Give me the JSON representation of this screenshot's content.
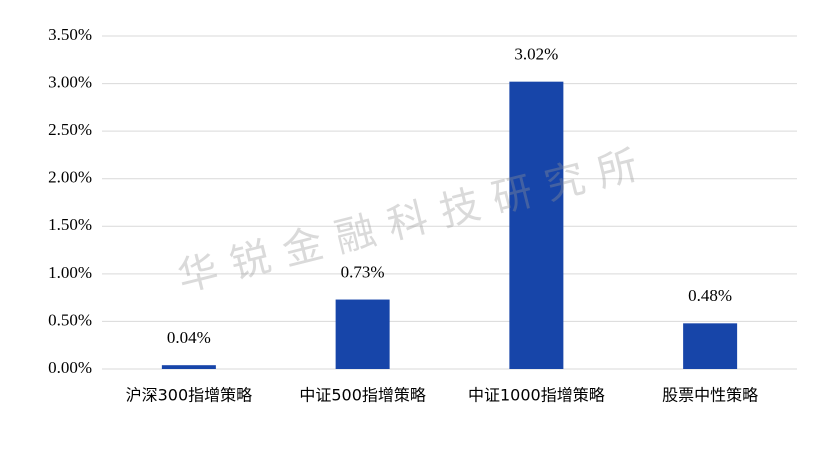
{
  "chart_data": {
    "type": "bar",
    "watermark": "华锐金融科技研究所",
    "categories": [
      "沪深300指增策略",
      "中证500指增策略",
      "中证1000指增策略",
      "股票中性策略"
    ],
    "values": [
      0.04,
      0.73,
      3.02,
      0.48
    ],
    "value_labels": [
      "0.04%",
      "0.73%",
      "3.02%",
      "0.48%"
    ],
    "color": "#1745a9",
    "ylim": [
      0,
      3.5
    ],
    "yticks": [
      {
        "value": 0,
        "label": "0.00%"
      },
      {
        "value": 0.5,
        "label": "0.50%"
      },
      {
        "value": 1,
        "label": "1.00%"
      },
      {
        "value": 1.5,
        "label": "1.50%"
      },
      {
        "value": 2,
        "label": "2.00%"
      },
      {
        "value": 2.5,
        "label": "2.50%"
      },
      {
        "value": 3,
        "label": "3.00%"
      },
      {
        "value": 3.5,
        "label": "3.50%"
      }
    ],
    "grid": true
  }
}
